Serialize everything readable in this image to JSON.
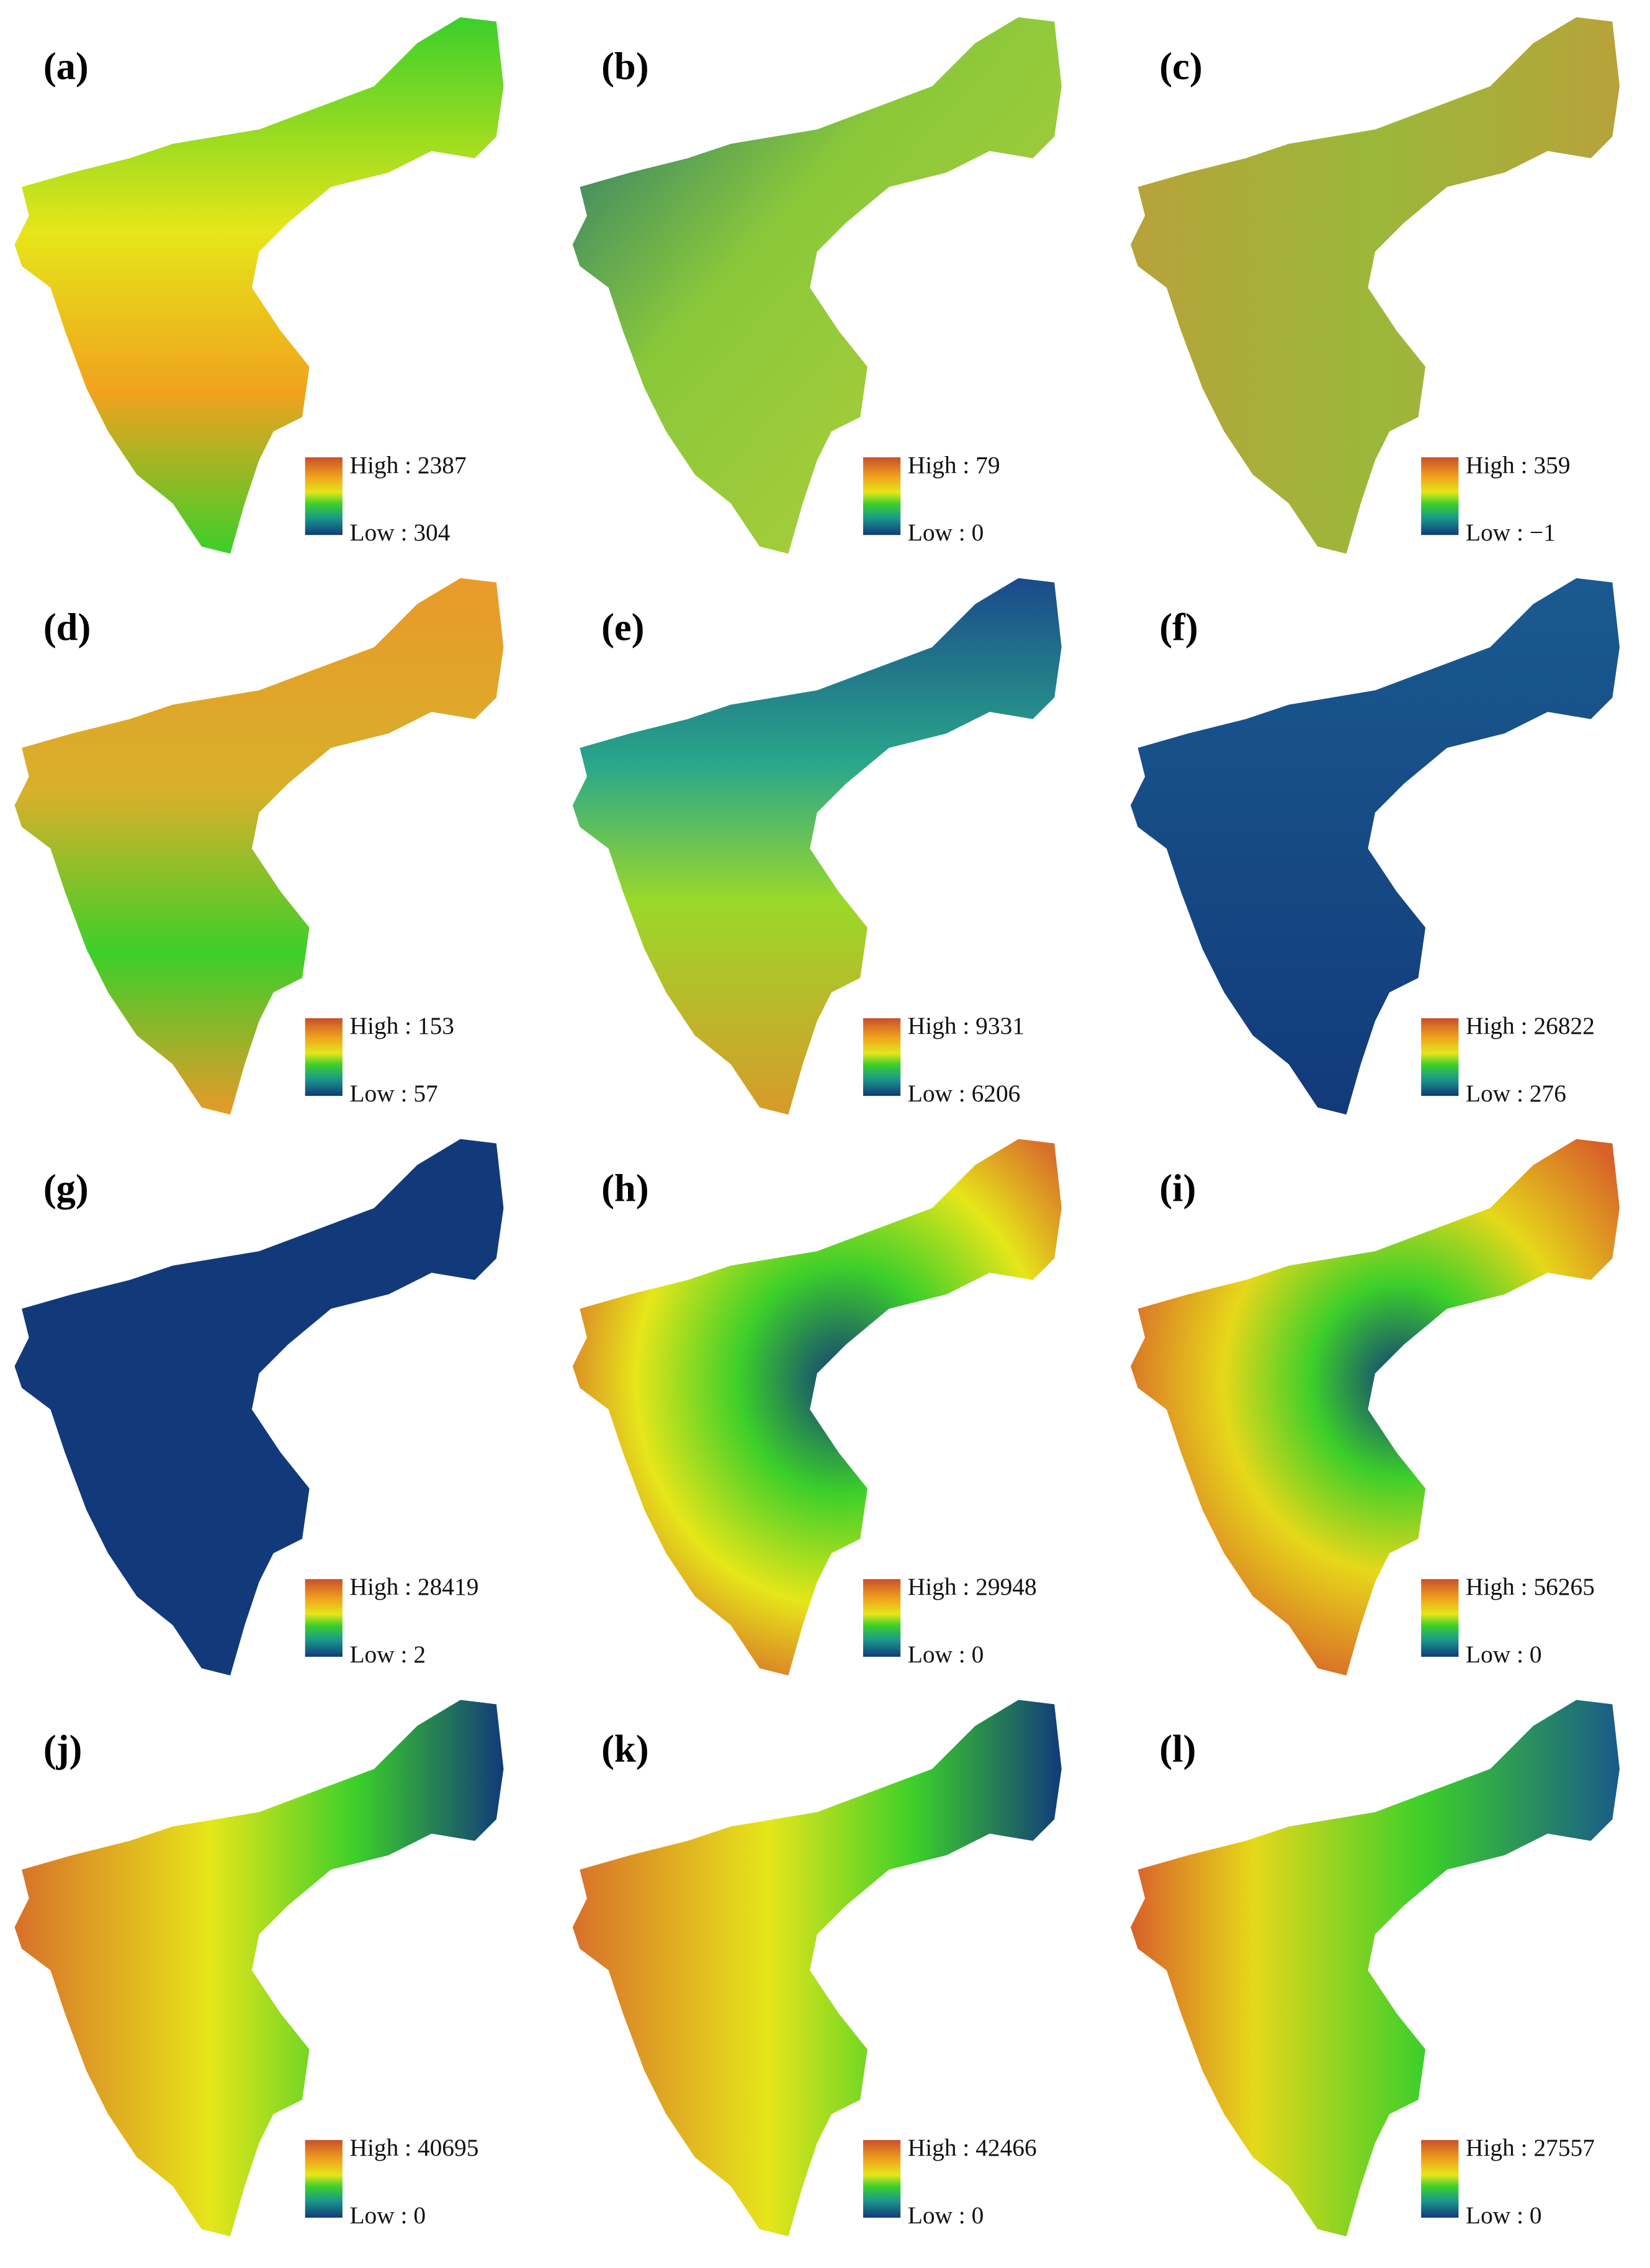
{
  "panels": [
    {
      "label": "(a)",
      "high": "High : 2387",
      "low": "Low : 304"
    },
    {
      "label": "(b)",
      "high": "High : 79",
      "low": "Low : 0"
    },
    {
      "label": "(c)",
      "high": "High : 359",
      "low": "Low : −1"
    },
    {
      "label": "(d)",
      "high": "High : 153",
      "low": "Low : 57"
    },
    {
      "label": "(e)",
      "high": "High : 9331",
      "low": "Low : 6206"
    },
    {
      "label": "(f)",
      "high": "High : 26822",
      "low": "Low : 276"
    },
    {
      "label": "(g)",
      "high": "High : 28419",
      "low": "Low : 2"
    },
    {
      "label": "(h)",
      "high": "High : 29948",
      "low": "Low : 0"
    },
    {
      "label": "(i)",
      "high": "High : 56265",
      "low": "Low : 0"
    },
    {
      "label": "(j)",
      "high": "High : 40695",
      "low": "Low : 0"
    },
    {
      "label": "(k)",
      "high": "High : 42466",
      "low": "Low : 0"
    },
    {
      "label": "(l)",
      "high": "High : 27557",
      "low": "Low : 0"
    }
  ]
}
